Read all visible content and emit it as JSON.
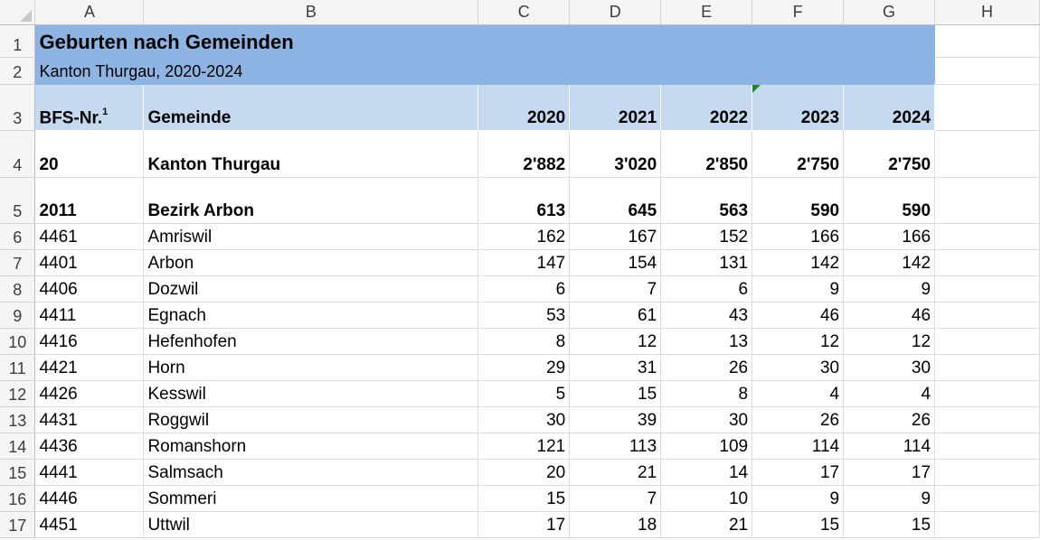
{
  "columns": [
    "A",
    "B",
    "C",
    "D",
    "E",
    "F",
    "G",
    "H"
  ],
  "title": "Geburten nach Gemeinden",
  "subtitle": "Kanton Thurgau, 2020-2024",
  "header": {
    "bfs": "BFS-Nr.",
    "bfs_note": "1",
    "gemeinde": "Gemeinde",
    "years": [
      "2020",
      "2021",
      "2022",
      "2023",
      "2024"
    ]
  },
  "rows": [
    {
      "num": "4",
      "bfs": "20",
      "name": "Kanton Thurgau",
      "vals": [
        "2'882",
        "3'020",
        "2'850",
        "2'750",
        "2'750"
      ],
      "bold": true
    },
    {
      "num": "5",
      "bfs": "2011",
      "name": "Bezirk Arbon",
      "vals": [
        "613",
        "645",
        "563",
        "590",
        "590"
      ],
      "bold": true
    },
    {
      "num": "6",
      "bfs": "4461",
      "name": "Amriswil",
      "vals": [
        "162",
        "167",
        "152",
        "166",
        "166"
      ]
    },
    {
      "num": "7",
      "bfs": "4401",
      "name": "Arbon",
      "vals": [
        "147",
        "154",
        "131",
        "142",
        "142"
      ]
    },
    {
      "num": "8",
      "bfs": "4406",
      "name": "Dozwil",
      "vals": [
        "6",
        "7",
        "6",
        "9",
        "9"
      ]
    },
    {
      "num": "9",
      "bfs": "4411",
      "name": "Egnach",
      "vals": [
        "53",
        "61",
        "43",
        "46",
        "46"
      ]
    },
    {
      "num": "10",
      "bfs": "4416",
      "name": "Hefenhofen",
      "vals": [
        "8",
        "12",
        "13",
        "12",
        "12"
      ]
    },
    {
      "num": "11",
      "bfs": "4421",
      "name": "Horn",
      "vals": [
        "29",
        "31",
        "26",
        "30",
        "30"
      ]
    },
    {
      "num": "12",
      "bfs": "4426",
      "name": "Kesswil",
      "vals": [
        "5",
        "15",
        "8",
        "4",
        "4"
      ]
    },
    {
      "num": "13",
      "bfs": "4431",
      "name": "Roggwil",
      "vals": [
        "30",
        "39",
        "30",
        "26",
        "26"
      ]
    },
    {
      "num": "14",
      "bfs": "4436",
      "name": "Romanshorn",
      "vals": [
        "121",
        "113",
        "109",
        "114",
        "114"
      ]
    },
    {
      "num": "15",
      "bfs": "4441",
      "name": "Salmsach",
      "vals": [
        "20",
        "21",
        "14",
        "17",
        "17"
      ]
    },
    {
      "num": "16",
      "bfs": "4446",
      "name": "Sommeri",
      "vals": [
        "15",
        "7",
        "10",
        "9",
        "9"
      ]
    },
    {
      "num": "17",
      "bfs": "4451",
      "name": "Uttwil",
      "vals": [
        "17",
        "18",
        "21",
        "15",
        "15"
      ]
    }
  ],
  "colors": {
    "title_bg": "#8eb4e3",
    "header_bg": "#c5d9f1",
    "comment_marker": "#1f8a2a"
  }
}
